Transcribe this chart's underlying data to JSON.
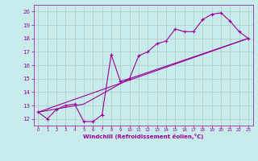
{
  "xlabel": "Windchill (Refroidissement éolien,°C)",
  "bg_color": "#c8ecec",
  "line_color": "#990099",
  "grid_color": "#b0c8c8",
  "xlim": [
    -0.5,
    23.5
  ],
  "ylim": [
    11.5,
    20.5
  ],
  "xticks": [
    0,
    1,
    2,
    3,
    4,
    5,
    6,
    7,
    8,
    9,
    10,
    11,
    12,
    13,
    14,
    15,
    16,
    17,
    18,
    19,
    20,
    21,
    22,
    23
  ],
  "yticks": [
    12,
    13,
    14,
    15,
    16,
    17,
    18,
    19,
    20
  ],
  "series1_x": [
    0,
    1,
    2,
    3,
    4,
    5,
    6,
    7,
    8,
    9,
    10,
    11,
    12,
    13,
    14,
    15,
    16,
    17,
    18,
    19,
    20,
    21,
    22,
    23
  ],
  "series1_y": [
    12.5,
    12.0,
    12.7,
    13.0,
    13.1,
    11.8,
    11.8,
    12.3,
    16.8,
    14.8,
    15.0,
    16.7,
    17.0,
    17.6,
    17.8,
    18.7,
    18.5,
    18.5,
    19.4,
    19.8,
    19.9,
    19.3,
    18.5,
    18.0
  ],
  "series2_x": [
    0,
    23
  ],
  "series2_y": [
    12.5,
    18.0
  ],
  "series3_x": [
    0,
    5,
    10,
    23
  ],
  "series3_y": [
    12.5,
    13.1,
    15.0,
    18.0
  ]
}
